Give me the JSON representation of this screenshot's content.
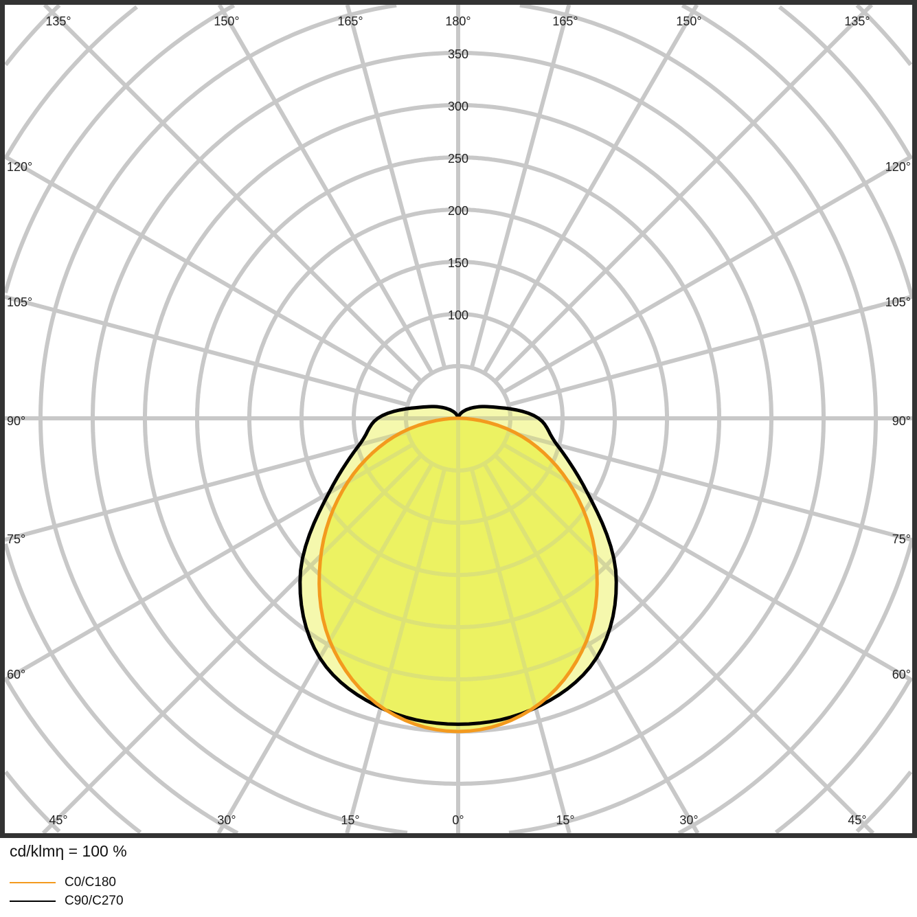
{
  "chart_data": {
    "type": "polar-line",
    "caption": "cd/klmη = 100 %",
    "radial_ticks": [
      100,
      150,
      200,
      250,
      300,
      350
    ],
    "radial_grid_step": 50,
    "angle_labels": {
      "top": [
        "135°",
        "150°",
        "165°",
        "180°",
        "165°",
        "150°",
        "135°"
      ],
      "left": [
        "120°",
        "105°",
        "90°",
        "75°",
        "60°"
      ],
      "right": [
        "120°",
        "105°",
        "90°",
        "75°",
        "60°"
      ],
      "bottom": [
        "45°",
        "30°",
        "15°",
        "0°",
        "15°",
        "30°",
        "45°"
      ]
    },
    "angles_deg": [
      0,
      15,
      30,
      45,
      60,
      75,
      90,
      105,
      120,
      135,
      150,
      165,
      180
    ],
    "series": [
      {
        "name": "C0/C180",
        "color": "#f39a1e",
        "values": [
          300,
          286,
          246,
          186,
          122,
          60,
          3,
          0,
          0,
          0,
          0,
          0,
          0
        ]
      },
      {
        "name": "C90/C270",
        "color": "#000000",
        "values": [
          293,
          287,
          265,
          214,
          143,
          98,
          77,
          40,
          22,
          12,
          6,
          2,
          0
        ]
      }
    ],
    "fill_color": "#e8f04a",
    "grid": true
  }
}
